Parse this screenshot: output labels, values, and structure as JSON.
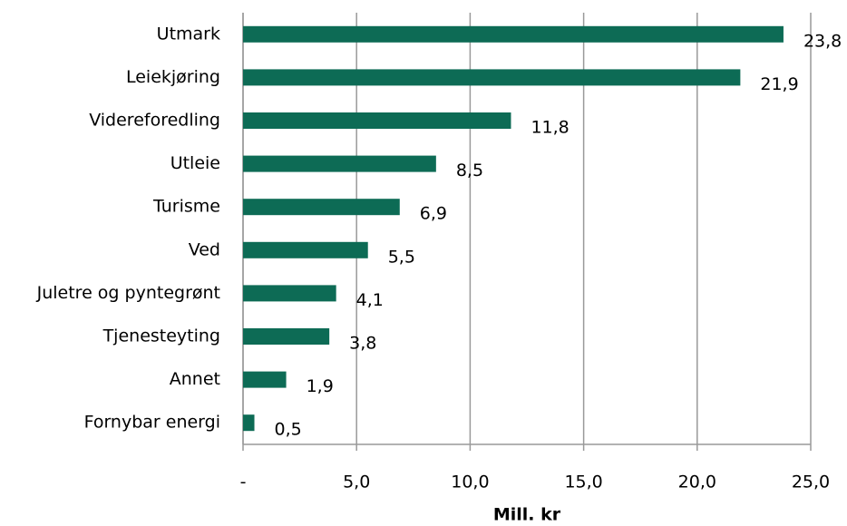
{
  "chart_data": {
    "type": "bar",
    "orientation": "horizontal",
    "categories": [
      "Utmark",
      "Leiekjøring",
      "Videreforedling",
      "Utleie",
      "Turisme",
      "Ved",
      "Juletre og pyntegrønt",
      "Tjenesteyting",
      "Annet",
      "Fornybar energi"
    ],
    "values": [
      23.8,
      21.9,
      11.8,
      8.5,
      6.9,
      5.5,
      4.1,
      3.8,
      1.9,
      0.5
    ],
    "value_labels": [
      "23,8",
      "21,9",
      "11,8",
      "8,5",
      "6,9",
      "5,5",
      "4,1",
      "3,8",
      "1,9",
      "0,5"
    ],
    "color": "#0d6b55",
    "xlim": [
      0,
      25
    ],
    "xticks": [
      {
        "value": 0,
        "label": "-"
      },
      {
        "value": 5,
        "label": "5,0"
      },
      {
        "value": 10,
        "label": "10,0"
      },
      {
        "value": 15,
        "label": "15,0"
      },
      {
        "value": 20,
        "label": "20,0"
      },
      {
        "value": 25,
        "label": "25,0"
      }
    ],
    "xlabel": "Mill. kr",
    "grid": true
  }
}
